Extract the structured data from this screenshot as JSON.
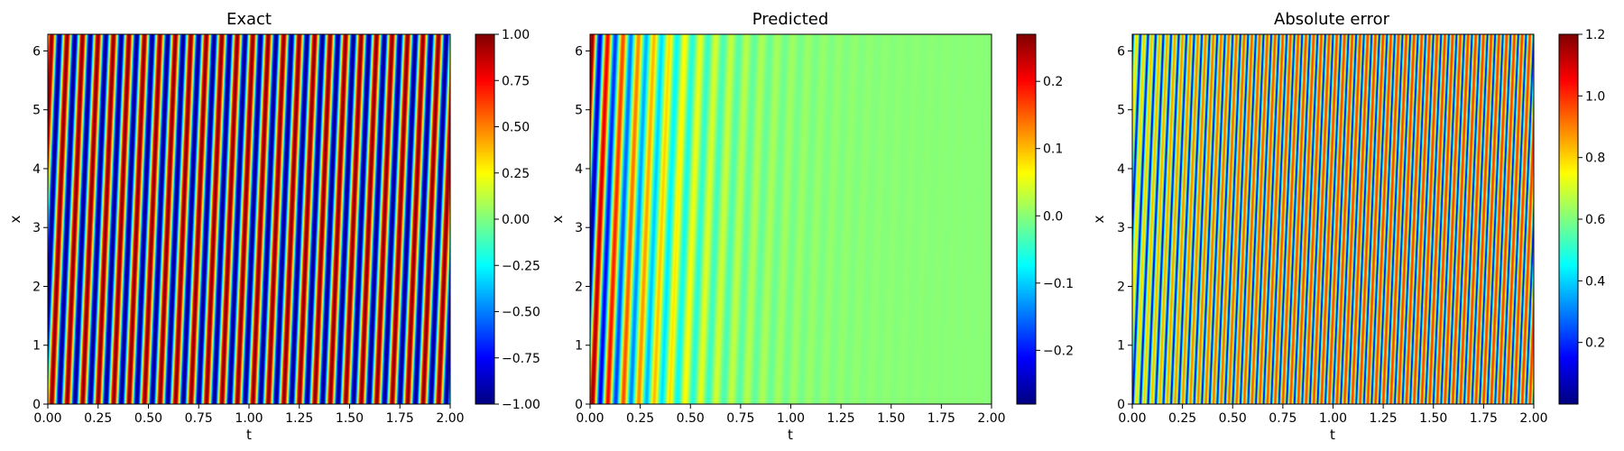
{
  "chart_data": [
    {
      "type": "heatmap",
      "title": "Exact",
      "xlabel": "t",
      "ylabel": "x",
      "xlim": [
        0,
        2
      ],
      "ylim": [
        0,
        6.283
      ],
      "x_ticks": [
        "0.00",
        "0.25",
        "0.50",
        "0.75",
        "1.00",
        "1.25",
        "1.50",
        "1.75",
        "2.00"
      ],
      "y_ticks": [
        "0",
        "1",
        "2",
        "3",
        "4",
        "5",
        "6"
      ],
      "colorbar": {
        "min": -1,
        "max": 1,
        "ticks": [
          "−1.00",
          "−0.75",
          "−0.50",
          "−0.25",
          "0.00",
          "0.25",
          "0.50",
          "0.75",
          "1.00"
        ]
      },
      "field": {
        "kind": "exact",
        "time_frequency": 13,
        "space_wavenumber": 1
      }
    },
    {
      "type": "heatmap",
      "title": "Predicted",
      "xlabel": "t",
      "ylabel": "x",
      "xlim": [
        0,
        2
      ],
      "ylim": [
        0,
        6.283
      ],
      "x_ticks": [
        "0.00",
        "0.25",
        "0.50",
        "0.75",
        "1.00",
        "1.25",
        "1.50",
        "1.75",
        "2.00"
      ],
      "y_ticks": [
        "0",
        "1",
        "2",
        "3",
        "4",
        "5",
        "6"
      ],
      "colorbar": {
        "min": -0.28,
        "max": 0.27,
        "ticks": [
          "−0.2",
          "−0.1",
          "0.0",
          "0.1",
          "0.2"
        ]
      },
      "field": {
        "kind": "predicted",
        "time_frequency": 13,
        "space_wavenumber": 1,
        "amplitude": 0.27,
        "decay_t": 0.33
      }
    },
    {
      "type": "heatmap",
      "title": "Absolute error",
      "xlabel": "t",
      "ylabel": "x",
      "xlim": [
        0,
        2
      ],
      "ylim": [
        0,
        6.283
      ],
      "x_ticks": [
        "0.00",
        "0.25",
        "0.50",
        "0.75",
        "1.00",
        "1.25",
        "1.50",
        "1.75",
        "2.00"
      ],
      "y_ticks": [
        "0",
        "1",
        "2",
        "3",
        "4",
        "5",
        "6"
      ],
      "colorbar": {
        "min": 0.0,
        "max": 1.2,
        "ticks": [
          "0.2",
          "0.4",
          "0.6",
          "0.8",
          "1.0",
          "1.2"
        ]
      },
      "field": {
        "kind": "error",
        "time_frequency": 13,
        "space_wavenumber": 1,
        "amplitude": 0.27,
        "decay_t": 0.33
      }
    }
  ],
  "colors": {
    "colormap": "jet"
  }
}
